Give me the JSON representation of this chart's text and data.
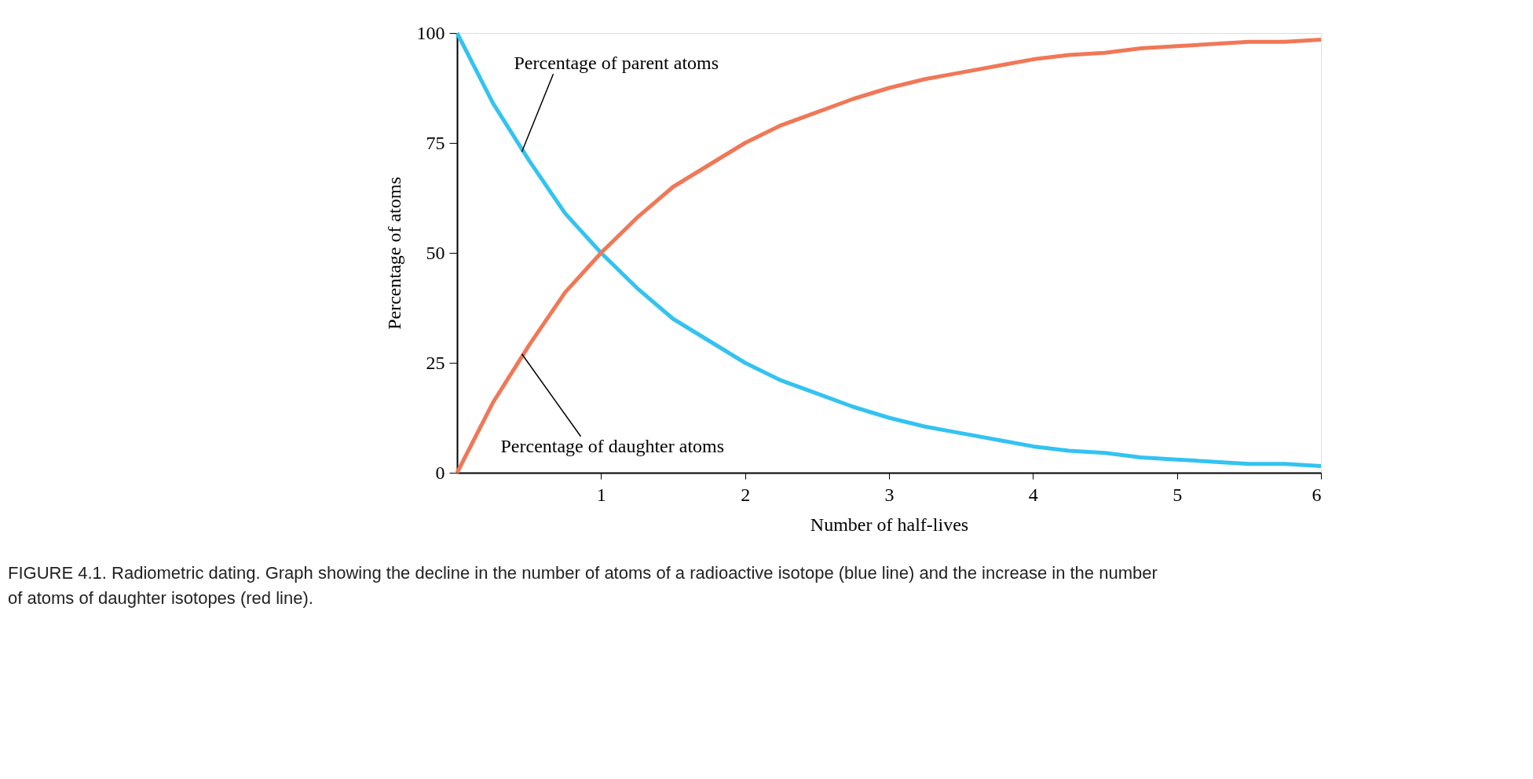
{
  "chart_data": {
    "type": "line",
    "xlabel": "Number of half-lives",
    "ylabel": "Percentage of atoms",
    "x": [
      0,
      0.25,
      0.5,
      0.75,
      1,
      1.25,
      1.5,
      1.75,
      2,
      2.25,
      2.5,
      2.75,
      3,
      3.25,
      3.5,
      3.75,
      4,
      4.25,
      4.5,
      4.75,
      5,
      5.25,
      5.5,
      5.75,
      6
    ],
    "series": [
      {
        "color": "#33c3f0",
        "values": [
          100,
          84,
          71,
          59,
          50,
          42,
          35,
          30,
          25,
          21,
          18,
          15,
          12.5,
          10.5,
          9,
          7.5,
          6,
          5,
          4.5,
          3.5,
          3,
          2.5,
          2,
          2,
          1.5
        ]
      },
      {
        "color": "#f07857",
        "values": [
          0,
          16,
          29,
          41,
          50,
          58,
          65,
          70,
          75,
          79,
          82,
          85,
          87.5,
          89.5,
          91,
          92.5,
          94,
          95,
          95.5,
          96.5,
          97,
          97.5,
          98,
          98,
          98.5
        ]
      }
    ],
    "xlim": [
      0,
      6
    ],
    "xticks": [
      1,
      2,
      3,
      4,
      5,
      6
    ],
    "ylim": [
      0,
      100
    ],
    "yticks": [
      0,
      25,
      50,
      75,
      100
    ],
    "grid": false,
    "legend": false,
    "marker": "none",
    "line_style": "solid",
    "annotations": [
      {
        "text": "Percentage of parent atoms",
        "x": 0.45,
        "y": 73
      },
      {
        "text": "Percentage of daughter atoms",
        "x": 0.45,
        "y": 27
      },
      "FIGURE 4.1. Radiometric dating. Graph showing the decline in the number of atoms of a radioactive isotope (blue line) and the increase in the number of atoms of daughter isotopes (red line)."
    ]
  }
}
